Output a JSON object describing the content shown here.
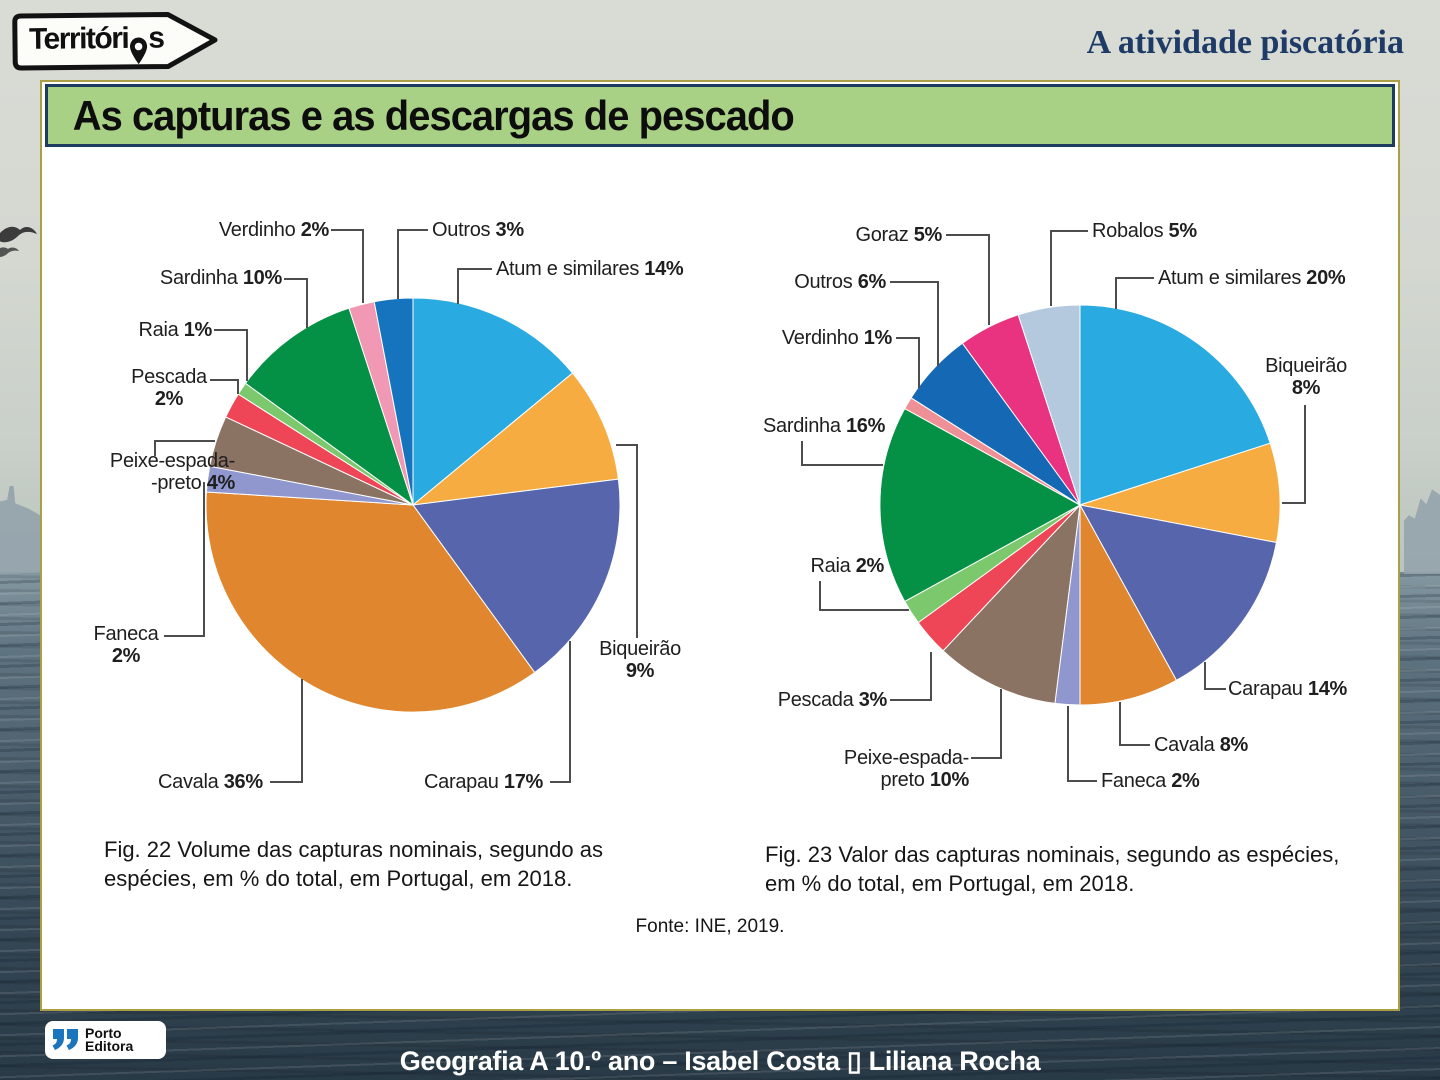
{
  "header": {
    "brand_pre": "Territóri",
    "brand_post": "s",
    "title": "A atividade piscatória"
  },
  "banner": {
    "title": "As capturas e as descargas de pescado"
  },
  "source": "Fonte: INE, 2019.",
  "footer": {
    "text": "Geografia A 10.º ano – Isabel Costa ▯ Liliana Rocha"
  },
  "publisher": {
    "line1": "Porto",
    "line2": "Editora"
  },
  "chart_data": [
    {
      "type": "pie",
      "title": "Volume das capturas nominais, segundo as espécies, em % do total, em Portugal, em 2018",
      "caption": "Fig. 22  Volume das capturas nominais, segundo as espécies, em % do total, em Portugal, em 2018.",
      "slices": [
        {
          "id": "atum",
          "name": "Atum e similares",
          "value": 14,
          "color": "#29abe2",
          "label_text": "Atum e similares",
          "pct": "14%",
          "pct_newline": false
        },
        {
          "id": "biqueirao",
          "name": "Biqueirão",
          "value": 9,
          "color": "#f7ac42",
          "label_text": "Biqueirão",
          "pct": "9%",
          "pct_newline": true
        },
        {
          "id": "carapau",
          "name": "Carapau",
          "value": 17,
          "color": "#5765ad",
          "label_text": "Carapau",
          "pct": "17%",
          "pct_newline": false
        },
        {
          "id": "cavala",
          "name": "Cavala",
          "value": 36,
          "color": "#e0862e",
          "label_text": "Cavala",
          "pct": "36%",
          "pct_newline": false
        },
        {
          "id": "faneca",
          "name": "Faneca",
          "value": 2,
          "color": "#9097ce",
          "label_text": "Faneca",
          "pct": "2%",
          "pct_newline": true
        },
        {
          "id": "peixe",
          "name": "Peixe-espada-preto",
          "value": 4,
          "color": "#8b7364",
          "label_text": "Peixe-espada-\n-preto",
          "pct": "4%",
          "pct_newline": false
        },
        {
          "id": "pescada",
          "name": "Pescada",
          "value": 2,
          "color": "#ee4656",
          "label_text": "Pescada",
          "pct": "2%",
          "pct_newline": true
        },
        {
          "id": "raia",
          "name": "Raia",
          "value": 1,
          "color": "#7cc86d",
          "label_text": "Raia",
          "pct": "1%",
          "pct_newline": false
        },
        {
          "id": "sardinha",
          "name": "Sardinha",
          "value": 10,
          "color": "#049045",
          "label_text": "Sardinha",
          "pct": "10%",
          "pct_newline": false
        },
        {
          "id": "verdinho",
          "name": "Verdinho",
          "value": 2,
          "color": "#f198b4",
          "label_text": "Verdinho",
          "pct": "2%",
          "pct_newline": false
        },
        {
          "id": "outros",
          "name": "Outros",
          "value": 3,
          "color": "#1673bd",
          "label_text": "Outros",
          "pct": "3%",
          "pct_newline": false
        }
      ]
    },
    {
      "type": "pie",
      "title": "Valor das capturas nominais, segundo as espécies, em % do total, em Portugal, em 2018",
      "caption": "Fig. 23  Valor das capturas nominais, segundo as espécies, em % do total, em Portugal, em 2018.",
      "slices": [
        {
          "id": "atum",
          "name": "Atum e similares",
          "value": 20,
          "color": "#29abe2",
          "label_text": "Atum e similares",
          "pct": "20%",
          "pct_newline": false
        },
        {
          "id": "biqueirao",
          "name": "Biqueirão",
          "value": 8,
          "color": "#f7ac42",
          "label_text": "Biqueirão",
          "pct": "8%",
          "pct_newline": true
        },
        {
          "id": "carapau",
          "name": "Carapau",
          "value": 14,
          "color": "#5765ad",
          "label_text": "Carapau",
          "pct": "14%",
          "pct_newline": false
        },
        {
          "id": "cavala",
          "name": "Cavala",
          "value": 8,
          "color": "#e0862e",
          "label_text": "Cavala",
          "pct": "8%",
          "pct_newline": false
        },
        {
          "id": "faneca",
          "name": "Faneca",
          "value": 2,
          "color": "#9097ce",
          "label_text": "Faneca",
          "pct": "2%",
          "pct_newline": false
        },
        {
          "id": "peixe",
          "name": "Peixe-espada-preto",
          "value": 10,
          "color": "#8b7364",
          "label_text": "Peixe-espada-preto",
          "pct": "10%",
          "pct_newline": false
        },
        {
          "id": "pescada",
          "name": "Pescada",
          "value": 3,
          "color": "#ee4656",
          "label_text": "Pescada",
          "pct": "3%",
          "pct_newline": false
        },
        {
          "id": "raia",
          "name": "Raia",
          "value": 2,
          "color": "#7cc86d",
          "label_text": "Raia",
          "pct": "2%",
          "pct_newline": false
        },
        {
          "id": "sardinha",
          "name": "Sardinha",
          "value": 16,
          "color": "#049045",
          "label_text": "Sardinha",
          "pct": "16%",
          "pct_newline": false
        },
        {
          "id": "verdinho",
          "name": "Verdinho",
          "value": 1,
          "color": "#ef8f96",
          "label_text": "Verdinho",
          "pct": "1%",
          "pct_newline": false
        },
        {
          "id": "outros",
          "name": "Outros",
          "value": 6,
          "color": "#1568b4",
          "label_text": "Outros",
          "pct": "6%",
          "pct_newline": false
        },
        {
          "id": "goraz",
          "name": "Goraz",
          "value": 5,
          "color": "#e93280",
          "label_text": "Goraz",
          "pct": "5%",
          "pct_newline": false
        },
        {
          "id": "robalos",
          "name": "Robalos",
          "value": 5,
          "color": "#b5c9de",
          "label_text": "Robalos",
          "pct": "5%",
          "pct_newline": false
        }
      ]
    }
  ]
}
